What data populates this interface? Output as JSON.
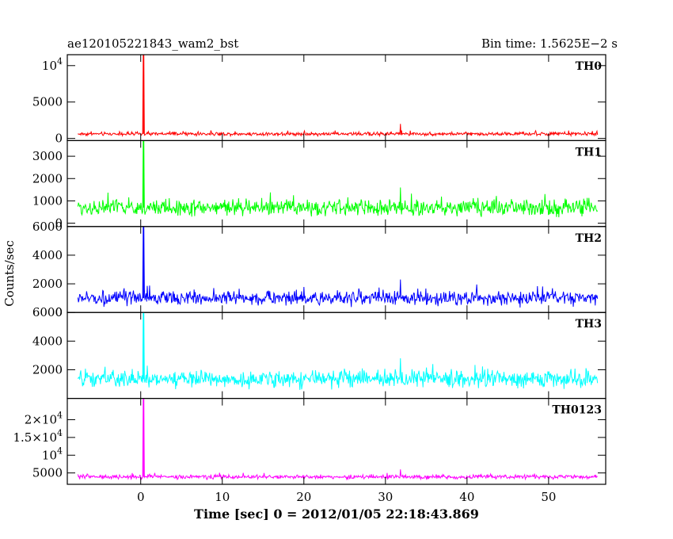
{
  "header": {
    "title": "ae120105221843_wam2_bst",
    "bin_time": "Bin time: 1.5625E−2 s"
  },
  "ylabel": "Counts/sec",
  "xlabel": "Time [sec] 0 = 2012/01/05 22:18:43.869",
  "chart_data": {
    "type": "line",
    "title": "ae120105221843_wam2_bst",
    "subtitle": "Bin time: 1.5625E−2 s",
    "xlabel": "Time [sec] 0 = 2012/01/05 22:18:43.869",
    "ylabel": "Counts/sec",
    "xlim": [
      -9,
      57
    ],
    "x_ticks": [
      0,
      10,
      20,
      30,
      40,
      50
    ],
    "x_tick_labels": [
      "0",
      "10",
      "20",
      "30",
      "40",
      "50"
    ],
    "data_range": [
      -7.7,
      56
    ],
    "grid": false,
    "panels": [
      {
        "name": "TH0",
        "color": "#ff0000",
        "ylim": [
          -300,
          11500
        ],
        "y_ticks": [
          0,
          5000,
          10000
        ],
        "y_tick_labels": [
          {
            "base": "0"
          },
          {
            "base": "5000"
          },
          {
            "base": "10",
            "exp": "4"
          }
        ],
        "baseline": 620,
        "noise": 320,
        "extreme_peak": 2000,
        "spike": {
          "x": 0.35,
          "y": 11500
        }
      },
      {
        "name": "TH1",
        "color": "#00ff00",
        "ylim": [
          -150,
          3700
        ],
        "y_ticks": [
          0,
          1000,
          2000,
          3000
        ],
        "y_tick_labels": [
          {
            "base": "0"
          },
          {
            "base": "1000"
          },
          {
            "base": "2000"
          },
          {
            "base": "3000"
          }
        ],
        "baseline": 700,
        "noise": 480,
        "extreme_peak": 1600,
        "spike": {
          "x": 0.35,
          "y": 3700
        }
      },
      {
        "name": "TH2",
        "color": "#0000ff",
        "ylim": [
          0,
          6000
        ],
        "y_ticks": [
          0,
          2000,
          4000,
          6000
        ],
        "y_tick_labels": [
          {
            "base": "0"
          },
          {
            "base": "2000"
          },
          {
            "base": "4000"
          },
          {
            "base": "6000"
          }
        ],
        "baseline": 1000,
        "noise": 640,
        "extreme_peak": 2300,
        "spike": {
          "x": 0.35,
          "y": 6000
        }
      },
      {
        "name": "TH3",
        "color": "#00ffff",
        "ylim": [
          0,
          6000
        ],
        "y_ticks": [
          2000,
          4000,
          6000
        ],
        "y_tick_labels": [
          {
            "base": "2000"
          },
          {
            "base": "4000"
          },
          {
            "base": "6000"
          }
        ],
        "baseline": 1350,
        "noise": 780,
        "extreme_peak": 2800,
        "spike": {
          "x": 0.35,
          "y": 6000
        }
      },
      {
        "name": "TH0123",
        "color": "#ff00ff",
        "ylim": [
          1800,
          26000
        ],
        "y_ticks": [
          5000,
          10000,
          15000,
          20000
        ],
        "y_tick_labels": [
          {
            "base": "5000"
          },
          {
            "base": "10",
            "exp": "4"
          },
          {
            "base": "1.5×10",
            "exp": "4"
          },
          {
            "base": "2×10",
            "exp": "4"
          }
        ],
        "baseline": 3900,
        "noise": 780,
        "extreme_peak": 6000,
        "spike": {
          "x": 0.35,
          "y": 26000
        }
      }
    ]
  }
}
